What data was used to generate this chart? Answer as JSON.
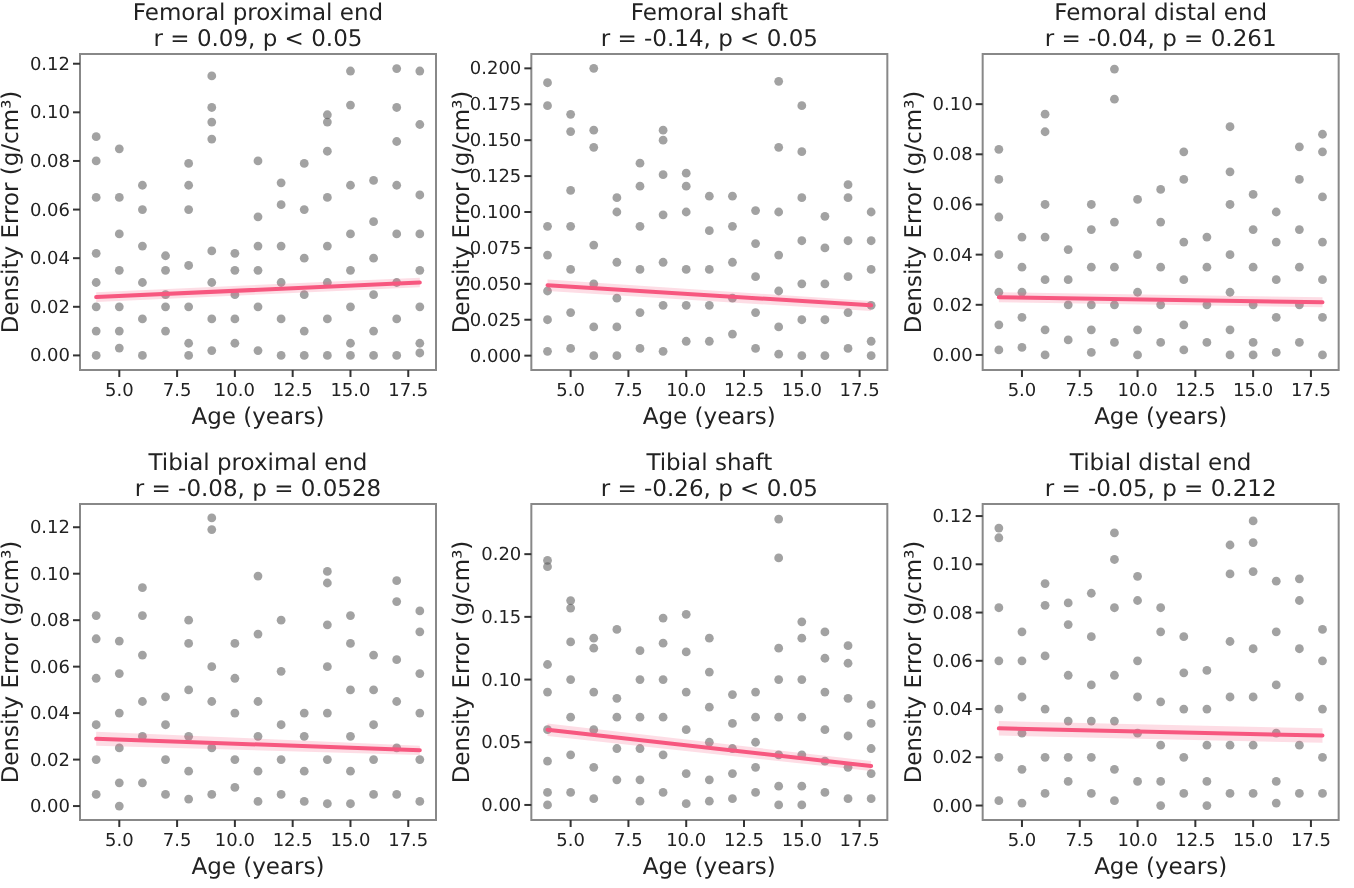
{
  "chart_data": [
    {
      "type": "scatter",
      "title": "Femoral proximal end",
      "subtitle": "r = 0.09, p < 0.05",
      "xlabel": "Age (years)",
      "ylabel": "Density Error (g/cm³)",
      "xlim": [
        3.3,
        18.7
      ],
      "xticks": [
        {
          "value": 5,
          "label": "5.0"
        },
        {
          "value": 7.5,
          "label": "7.5"
        },
        {
          "value": 10,
          "label": "10.0"
        },
        {
          "value": 12.5,
          "label": "12.5"
        },
        {
          "value": 15,
          "label": "15.0"
        },
        {
          "value": 17.5,
          "label": "17.5"
        }
      ],
      "ylim": [
        -0.006,
        0.124
      ],
      "yticks": [
        {
          "value": 0,
          "label": "0.00"
        },
        {
          "value": 0.02,
          "label": "0.02"
        },
        {
          "value": 0.04,
          "label": "0.04"
        },
        {
          "value": 0.06,
          "label": "0.06"
        },
        {
          "value": 0.08,
          "label": "0.08"
        },
        {
          "value": 0.1,
          "label": "0.10"
        },
        {
          "value": 0.12,
          "label": "0.12"
        }
      ],
      "series": [
        {
          "type": "scatter",
          "marker": "circle",
          "color": "#555555",
          "x": [
            4,
            4,
            4,
            4,
            4,
            4,
            4,
            4,
            5,
            5,
            5,
            5,
            5,
            5,
            5,
            6,
            6,
            6,
            6,
            6,
            6,
            7,
            7,
            7,
            7,
            7,
            8,
            8,
            8,
            8,
            8,
            8,
            8,
            9,
            9,
            9,
            9,
            9,
            9,
            9,
            9,
            10,
            10,
            10,
            10,
            10,
            11,
            11,
            11,
            11,
            11,
            11,
            12,
            12,
            12,
            12,
            12,
            12,
            13,
            13,
            13,
            13,
            13,
            13,
            14,
            14,
            14,
            14,
            14,
            14,
            14,
            14,
            15,
            15,
            15,
            15,
            15,
            15,
            15,
            15,
            16,
            16,
            16,
            16,
            16,
            16,
            17,
            17,
            17,
            17,
            17,
            17,
            17,
            17,
            18,
            18,
            18,
            18,
            18,
            18,
            18,
            18
          ],
          "values": [
            0.09,
            0.08,
            0.065,
            0.042,
            0.03,
            0.02,
            0.01,
            0.0,
            0.085,
            0.065,
            0.05,
            0.035,
            0.02,
            0.01,
            0.003,
            0.07,
            0.06,
            0.045,
            0.03,
            0.015,
            0.0,
            0.041,
            0.035,
            0.025,
            0.02,
            0.01,
            0.079,
            0.07,
            0.06,
            0.037,
            0.02,
            0.005,
            0.0,
            0.115,
            0.102,
            0.096,
            0.089,
            0.043,
            0.03,
            0.015,
            0.002,
            0.042,
            0.035,
            0.025,
            0.015,
            0.005,
            0.08,
            0.057,
            0.045,
            0.035,
            0.02,
            0.002,
            0.071,
            0.062,
            0.045,
            0.03,
            0.015,
            0.0,
            0.079,
            0.06,
            0.04,
            0.025,
            0.01,
            0.0,
            0.099,
            0.096,
            0.084,
            0.065,
            0.045,
            0.03,
            0.015,
            0.0,
            0.117,
            0.103,
            0.07,
            0.05,
            0.035,
            0.02,
            0.005,
            0.0,
            0.072,
            0.055,
            0.04,
            0.025,
            0.01,
            0.0,
            0.118,
            0.102,
            0.088,
            0.07,
            0.05,
            0.03,
            0.015,
            0.0,
            0.117,
            0.095,
            0.066,
            0.05,
            0.035,
            0.02,
            0.005,
            0.001
          ]
        },
        {
          "type": "line",
          "marker": "none",
          "color": "#f7577f",
          "x": [
            4,
            18
          ],
          "values": [
            0.024,
            0.03
          ],
          "lower": [
            0.022,
            0.028
          ],
          "upper": [
            0.026,
            0.032
          ]
        }
      ]
    },
    {
      "type": "scatter",
      "title": "Femoral shaft",
      "subtitle": "r = -0.14, p < 0.05",
      "xlabel": "Age (years)",
      "ylabel": "Density Error (g/cm³)",
      "xlim": [
        3.3,
        18.7
      ],
      "xticks": [
        {
          "value": 5,
          "label": "5.0"
        },
        {
          "value": 7.5,
          "label": "7.5"
        },
        {
          "value": 10,
          "label": "10.0"
        },
        {
          "value": 12.5,
          "label": "12.5"
        },
        {
          "value": 15,
          "label": "15.0"
        },
        {
          "value": 17.5,
          "label": "17.5"
        }
      ],
      "ylim": [
        -0.01,
        0.21
      ],
      "yticks": [
        {
          "value": 0,
          "label": "0.000"
        },
        {
          "value": 0.025,
          "label": "0.025"
        },
        {
          "value": 0.05,
          "label": "0.050"
        },
        {
          "value": 0.075,
          "label": "0.075"
        },
        {
          "value": 0.1,
          "label": "0.100"
        },
        {
          "value": 0.125,
          "label": "0.125"
        },
        {
          "value": 0.15,
          "label": "0.150"
        },
        {
          "value": 0.175,
          "label": "0.175"
        },
        {
          "value": 0.2,
          "label": "0.200"
        }
      ],
      "series": [
        {
          "type": "scatter",
          "marker": "circle",
          "color": "#555555",
          "x": [
            4,
            4,
            4,
            4,
            4,
            4,
            4,
            5,
            5,
            5,
            5,
            5,
            5,
            5,
            6,
            6,
            6,
            6,
            6,
            6,
            6,
            7,
            7,
            7,
            7,
            7,
            7,
            8,
            8,
            8,
            8,
            8,
            8,
            9,
            9,
            9,
            9,
            9,
            9,
            9,
            10,
            10,
            10,
            10,
            10,
            10,
            11,
            11,
            11,
            11,
            11,
            12,
            12,
            12,
            12,
            12,
            13,
            13,
            13,
            13,
            13,
            14,
            14,
            14,
            14,
            14,
            14,
            14,
            15,
            15,
            15,
            15,
            15,
            15,
            15,
            16,
            16,
            16,
            16,
            16,
            17,
            17,
            17,
            17,
            17,
            17,
            18,
            18,
            18,
            18,
            18,
            18
          ],
          "values": [
            0.19,
            0.174,
            0.09,
            0.07,
            0.045,
            0.025,
            0.003,
            0.168,
            0.156,
            0.115,
            0.09,
            0.06,
            0.03,
            0.005,
            0.2,
            0.157,
            0.145,
            0.077,
            0.05,
            0.02,
            0.0,
            0.11,
            0.1,
            0.065,
            0.04,
            0.02,
            0.0,
            0.134,
            0.118,
            0.09,
            0.06,
            0.03,
            0.005,
            0.157,
            0.15,
            0.126,
            0.098,
            0.065,
            0.035,
            0.003,
            0.127,
            0.118,
            0.1,
            0.06,
            0.035,
            0.01,
            0.111,
            0.087,
            0.06,
            0.035,
            0.01,
            0.111,
            0.09,
            0.065,
            0.04,
            0.015,
            0.101,
            0.078,
            0.055,
            0.03,
            0.005,
            0.191,
            0.145,
            0.1,
            0.07,
            0.045,
            0.02,
            0.001,
            0.174,
            0.142,
            0.11,
            0.08,
            0.05,
            0.025,
            0.0,
            0.097,
            0.075,
            0.05,
            0.025,
            0.0,
            0.119,
            0.11,
            0.08,
            0.055,
            0.03,
            0.005,
            0.1,
            0.08,
            0.06,
            0.035,
            0.01,
            0.0
          ]
        },
        {
          "type": "line",
          "marker": "none",
          "color": "#f7577f",
          "x": [
            4,
            18
          ],
          "values": [
            0.049,
            0.035
          ],
          "lower": [
            0.045,
            0.031
          ],
          "upper": [
            0.053,
            0.038
          ]
        }
      ]
    },
    {
      "type": "scatter",
      "title": "Femoral distal end",
      "subtitle": "r = -0.04, p = 0.261",
      "xlabel": "Age (years)",
      "ylabel": "Density Error (g/cm³)",
      "xlim": [
        3.3,
        18.7
      ],
      "xticks": [
        {
          "value": 5,
          "label": "5.0"
        },
        {
          "value": 7.5,
          "label": "7.5"
        },
        {
          "value": 10,
          "label": "10.0"
        },
        {
          "value": 12.5,
          "label": "12.5"
        },
        {
          "value": 15,
          "label": "15.0"
        },
        {
          "value": 17.5,
          "label": "17.5"
        }
      ],
      "ylim": [
        -0.006,
        0.12
      ],
      "yticks": [
        {
          "value": 0,
          "label": "0.00"
        },
        {
          "value": 0.02,
          "label": "0.02"
        },
        {
          "value": 0.04,
          "label": "0.04"
        },
        {
          "value": 0.06,
          "label": "0.06"
        },
        {
          "value": 0.08,
          "label": "0.08"
        },
        {
          "value": 0.1,
          "label": "0.10"
        }
      ],
      "series": [
        {
          "type": "scatter",
          "marker": "circle",
          "color": "#555555",
          "x": [
            4,
            4,
            4,
            4,
            4,
            4,
            4,
            5,
            5,
            5,
            5,
            5,
            6,
            6,
            6,
            6,
            6,
            6,
            6,
            7,
            7,
            7,
            7,
            8,
            8,
            8,
            8,
            8,
            8,
            9,
            9,
            9,
            9,
            9,
            9,
            10,
            10,
            10,
            10,
            10,
            11,
            11,
            11,
            11,
            11,
            12,
            12,
            12,
            12,
            12,
            12,
            13,
            13,
            13,
            13,
            14,
            14,
            14,
            14,
            14,
            14,
            14,
            15,
            15,
            15,
            15,
            15,
            15,
            16,
            16,
            16,
            16,
            16,
            17,
            17,
            17,
            17,
            17,
            17,
            18,
            18,
            18,
            18,
            18,
            18,
            18
          ],
          "values": [
            0.082,
            0.07,
            0.055,
            0.04,
            0.025,
            0.012,
            0.002,
            0.047,
            0.035,
            0.025,
            0.015,
            0.003,
            0.096,
            0.089,
            0.06,
            0.047,
            0.03,
            0.01,
            0.0,
            0.042,
            0.03,
            0.02,
            0.006,
            0.06,
            0.05,
            0.035,
            0.02,
            0.01,
            0.001,
            0.114,
            0.102,
            0.053,
            0.035,
            0.02,
            0.005,
            0.062,
            0.04,
            0.025,
            0.01,
            0.0,
            0.066,
            0.053,
            0.035,
            0.02,
            0.005,
            0.081,
            0.07,
            0.045,
            0.03,
            0.012,
            0.002,
            0.047,
            0.035,
            0.02,
            0.005,
            0.091,
            0.073,
            0.06,
            0.04,
            0.025,
            0.01,
            0.0,
            0.064,
            0.05,
            0.035,
            0.02,
            0.005,
            0.0,
            0.057,
            0.045,
            0.03,
            0.015,
            0.001,
            0.083,
            0.07,
            0.05,
            0.035,
            0.02,
            0.005,
            0.088,
            0.081,
            0.063,
            0.045,
            0.03,
            0.015,
            0.0
          ]
        },
        {
          "type": "line",
          "marker": "none",
          "color": "#f7577f",
          "x": [
            4,
            18
          ],
          "values": [
            0.023,
            0.021
          ],
          "lower": [
            0.021,
            0.019
          ],
          "upper": [
            0.025,
            0.023
          ]
        }
      ]
    },
    {
      "type": "scatter",
      "title": "Tibial proximal end",
      "subtitle": "r = -0.08, p = 0.0528",
      "xlabel": "Age (years)",
      "ylabel": "Density Error (g/cm³)",
      "xlim": [
        3.3,
        18.7
      ],
      "xticks": [
        {
          "value": 5,
          "label": "5.0"
        },
        {
          "value": 7.5,
          "label": "7.5"
        },
        {
          "value": 10,
          "label": "10.0"
        },
        {
          "value": 12.5,
          "label": "12.5"
        },
        {
          "value": 15,
          "label": "15.0"
        },
        {
          "value": 17.5,
          "label": "17.5"
        }
      ],
      "ylim": [
        -0.006,
        0.13
      ],
      "yticks": [
        {
          "value": 0,
          "label": "0.00"
        },
        {
          "value": 0.02,
          "label": "0.02"
        },
        {
          "value": 0.04,
          "label": "0.04"
        },
        {
          "value": 0.06,
          "label": "0.06"
        },
        {
          "value": 0.08,
          "label": "0.08"
        },
        {
          "value": 0.1,
          "label": "0.10"
        },
        {
          "value": 0.12,
          "label": "0.12"
        }
      ],
      "series": [
        {
          "type": "scatter",
          "marker": "circle",
          "color": "#555555",
          "x": [
            4,
            4,
            4,
            4,
            4,
            4,
            5,
            5,
            5,
            5,
            5,
            5,
            6,
            6,
            6,
            6,
            6,
            6,
            7,
            7,
            7,
            7,
            8,
            8,
            8,
            8,
            8,
            8,
            9,
            9,
            9,
            9,
            9,
            9,
            10,
            10,
            10,
            10,
            10,
            11,
            11,
            11,
            11,
            11,
            11,
            12,
            12,
            12,
            12,
            12,
            13,
            13,
            13,
            13,
            14,
            14,
            14,
            14,
            14,
            14,
            14,
            15,
            15,
            15,
            15,
            15,
            15,
            16,
            16,
            16,
            16,
            16,
            17,
            17,
            17,
            17,
            17,
            17,
            18,
            18,
            18,
            18,
            18,
            18
          ],
          "values": [
            0.082,
            0.072,
            0.055,
            0.035,
            0.02,
            0.005,
            0.071,
            0.057,
            0.04,
            0.025,
            0.01,
            0.0,
            0.094,
            0.082,
            0.065,
            0.045,
            0.03,
            0.01,
            0.047,
            0.035,
            0.02,
            0.005,
            0.08,
            0.07,
            0.05,
            0.03,
            0.015,
            0.003,
            0.124,
            0.119,
            0.06,
            0.045,
            0.025,
            0.005,
            0.07,
            0.055,
            0.04,
            0.02,
            0.008,
            0.099,
            0.074,
            0.045,
            0.03,
            0.015,
            0.002,
            0.08,
            0.058,
            0.035,
            0.02,
            0.005,
            0.04,
            0.03,
            0.015,
            0.002,
            0.101,
            0.096,
            0.078,
            0.06,
            0.04,
            0.02,
            0.001,
            0.082,
            0.07,
            0.05,
            0.03,
            0.015,
            0.001,
            0.065,
            0.05,
            0.035,
            0.02,
            0.005,
            0.097,
            0.088,
            0.063,
            0.045,
            0.025,
            0.005,
            0.084,
            0.075,
            0.057,
            0.04,
            0.02,
            0.002
          ]
        },
        {
          "type": "line",
          "marker": "none",
          "color": "#f7577f",
          "x": [
            4,
            18
          ],
          "values": [
            0.029,
            0.024
          ],
          "lower": [
            0.026,
            0.022
          ],
          "upper": [
            0.032,
            0.026
          ]
        }
      ]
    },
    {
      "type": "scatter",
      "title": "Tibial shaft",
      "subtitle": "r = -0.26, p < 0.05",
      "xlabel": "Age (years)",
      "ylabel": "Density Error (g/cm³)",
      "xlim": [
        3.3,
        18.7
      ],
      "xticks": [
        {
          "value": 5,
          "label": "5.0"
        },
        {
          "value": 7.5,
          "label": "7.5"
        },
        {
          "value": 10,
          "label": "10.0"
        },
        {
          "value": 12.5,
          "label": "12.5"
        },
        {
          "value": 15,
          "label": "15.0"
        },
        {
          "value": 17.5,
          "label": "17.5"
        }
      ],
      "ylim": [
        -0.012,
        0.24
      ],
      "yticks": [
        {
          "value": 0,
          "label": "0.00"
        },
        {
          "value": 0.05,
          "label": "0.05"
        },
        {
          "value": 0.1,
          "label": "0.10"
        },
        {
          "value": 0.15,
          "label": "0.15"
        },
        {
          "value": 0.2,
          "label": "0.20"
        }
      ],
      "series": [
        {
          "type": "scatter",
          "marker": "circle",
          "color": "#555555",
          "x": [
            4,
            4,
            4,
            4,
            4,
            4,
            4,
            4,
            5,
            5,
            5,
            5,
            5,
            5,
            5,
            6,
            6,
            6,
            6,
            6,
            6,
            7,
            7,
            7,
            7,
            7,
            8,
            8,
            8,
            8,
            8,
            8,
            9,
            9,
            9,
            9,
            9,
            9,
            10,
            10,
            10,
            10,
            10,
            10,
            11,
            11,
            11,
            11,
            11,
            11,
            12,
            12,
            12,
            12,
            12,
            13,
            13,
            13,
            13,
            13,
            14,
            14,
            14,
            14,
            14,
            14,
            14,
            14,
            15,
            15,
            15,
            15,
            15,
            15,
            15,
            16,
            16,
            16,
            16,
            16,
            16,
            17,
            17,
            17,
            17,
            17,
            17,
            18,
            18,
            18,
            18,
            18
          ],
          "values": [
            0.195,
            0.19,
            0.112,
            0.09,
            0.06,
            0.035,
            0.01,
            0.0,
            0.163,
            0.157,
            0.13,
            0.1,
            0.07,
            0.04,
            0.01,
            0.133,
            0.125,
            0.09,
            0.06,
            0.03,
            0.005,
            0.14,
            0.085,
            0.07,
            0.045,
            0.02,
            0.123,
            0.1,
            0.07,
            0.045,
            0.02,
            0.003,
            0.149,
            0.129,
            0.1,
            0.07,
            0.04,
            0.01,
            0.152,
            0.122,
            0.09,
            0.06,
            0.025,
            0.001,
            0.133,
            0.106,
            0.078,
            0.05,
            0.02,
            0.003,
            0.088,
            0.065,
            0.045,
            0.025,
            0.005,
            0.09,
            0.07,
            0.05,
            0.03,
            0.01,
            0.228,
            0.197,
            0.125,
            0.1,
            0.07,
            0.04,
            0.015,
            0.0,
            0.146,
            0.133,
            0.1,
            0.07,
            0.04,
            0.015,
            0.0,
            0.138,
            0.117,
            0.09,
            0.06,
            0.035,
            0.01,
            0.127,
            0.113,
            0.085,
            0.055,
            0.03,
            0.005,
            0.08,
            0.065,
            0.045,
            0.025,
            0.005
          ]
        },
        {
          "type": "line",
          "marker": "none",
          "color": "#f7577f",
          "x": [
            4,
            18
          ],
          "values": [
            0.06,
            0.031
          ],
          "lower": [
            0.055,
            0.027
          ],
          "upper": [
            0.065,
            0.035
          ]
        }
      ]
    },
    {
      "type": "scatter",
      "title": "Tibial distal end",
      "subtitle": "r = -0.05, p = 0.212",
      "xlabel": "Age (years)",
      "ylabel": "Density Error (g/cm³)",
      "xlim": [
        3.3,
        18.7
      ],
      "xticks": [
        {
          "value": 5,
          "label": "5.0"
        },
        {
          "value": 7.5,
          "label": "7.5"
        },
        {
          "value": 10,
          "label": "10.0"
        },
        {
          "value": 12.5,
          "label": "12.5"
        },
        {
          "value": 15,
          "label": "15.0"
        },
        {
          "value": 17.5,
          "label": "17.5"
        }
      ],
      "ylim": [
        -0.006,
        0.125
      ],
      "yticks": [
        {
          "value": 0,
          "label": "0.00"
        },
        {
          "value": 0.02,
          "label": "0.02"
        },
        {
          "value": 0.04,
          "label": "0.04"
        },
        {
          "value": 0.06,
          "label": "0.06"
        },
        {
          "value": 0.08,
          "label": "0.08"
        },
        {
          "value": 0.1,
          "label": "0.10"
        },
        {
          "value": 0.12,
          "label": "0.12"
        }
      ],
      "series": [
        {
          "type": "scatter",
          "marker": "circle",
          "color": "#555555",
          "x": [
            4,
            4,
            4,
            4,
            4,
            4,
            4,
            5,
            5,
            5,
            5,
            5,
            5,
            6,
            6,
            6,
            6,
            6,
            6,
            7,
            7,
            7,
            7,
            7,
            7,
            8,
            8,
            8,
            8,
            8,
            8,
            9,
            9,
            9,
            9,
            9,
            9,
            9,
            10,
            10,
            10,
            10,
            10,
            10,
            11,
            11,
            11,
            11,
            11,
            11,
            12,
            12,
            12,
            12,
            12,
            13,
            13,
            13,
            13,
            13,
            14,
            14,
            14,
            14,
            14,
            14,
            15,
            15,
            15,
            15,
            15,
            15,
            15,
            16,
            16,
            16,
            16,
            16,
            16,
            17,
            17,
            17,
            17,
            17,
            17,
            18,
            18,
            18,
            18,
            18
          ],
          "values": [
            0.115,
            0.111,
            0.082,
            0.06,
            0.04,
            0.02,
            0.002,
            0.072,
            0.06,
            0.045,
            0.03,
            0.015,
            0.001,
            0.092,
            0.083,
            0.062,
            0.04,
            0.02,
            0.005,
            0.084,
            0.075,
            0.054,
            0.035,
            0.02,
            0.01,
            0.088,
            0.07,
            0.05,
            0.035,
            0.02,
            0.005,
            0.113,
            0.102,
            0.082,
            0.054,
            0.035,
            0.015,
            0.002,
            0.095,
            0.085,
            0.06,
            0.045,
            0.03,
            0.01,
            0.082,
            0.072,
            0.043,
            0.025,
            0.01,
            0.0,
            0.07,
            0.055,
            0.04,
            0.02,
            0.005,
            0.056,
            0.04,
            0.025,
            0.01,
            0.0,
            0.108,
            0.096,
            0.068,
            0.045,
            0.025,
            0.005,
            0.118,
            0.109,
            0.097,
            0.065,
            0.045,
            0.025,
            0.005,
            0.093,
            0.072,
            0.05,
            0.03,
            0.01,
            0.001,
            0.094,
            0.085,
            0.065,
            0.045,
            0.025,
            0.005,
            0.073,
            0.06,
            0.04,
            0.02,
            0.005
          ]
        },
        {
          "type": "line",
          "marker": "none",
          "color": "#f7577f",
          "x": [
            4,
            18
          ],
          "values": [
            0.032,
            0.029
          ],
          "lower": [
            0.029,
            0.026
          ],
          "upper": [
            0.035,
            0.032
          ]
        }
      ]
    }
  ]
}
